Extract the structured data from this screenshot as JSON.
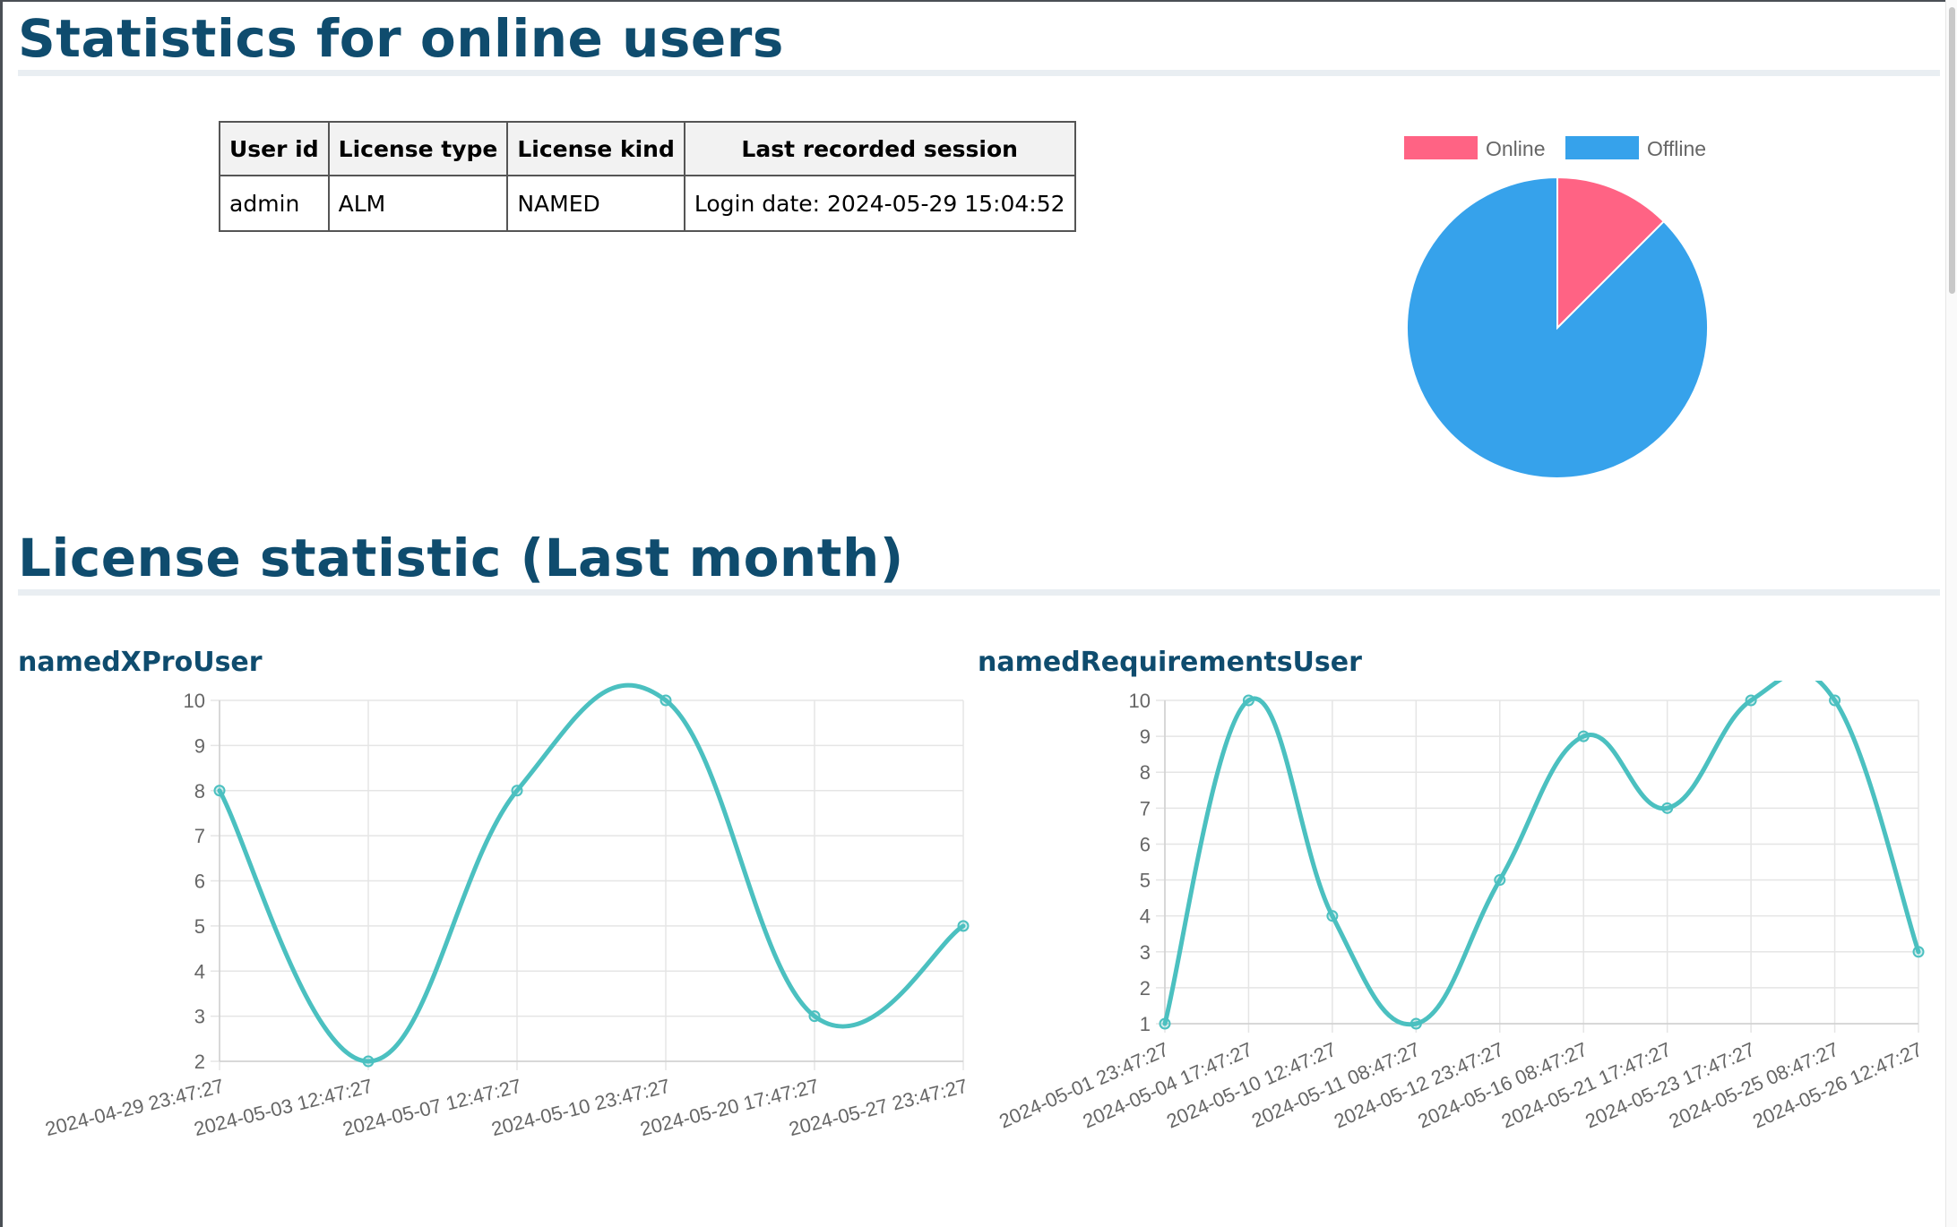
{
  "online_section": {
    "title": "Statistics for online users",
    "table": {
      "headers": [
        "User id",
        "License type",
        "License kind",
        "Last recorded session"
      ],
      "rows": [
        [
          "admin",
          "ALM",
          "NAMED",
          "Login date: 2024-05-29 15:04:52"
        ]
      ]
    }
  },
  "license_section": {
    "title": "License statistic (Last month)"
  },
  "colors": {
    "online": "#ff6384",
    "offline": "#36a2eb",
    "line": "#4bc0c0",
    "heading": "#0f4c6e",
    "grid": "#e5e5e5",
    "tick_text": "#666666"
  },
  "chart_data": [
    {
      "type": "pie",
      "title": "",
      "legend": "top",
      "labels": [
        "Online",
        "Offline"
      ],
      "values": [
        1,
        7
      ]
    },
    {
      "type": "line",
      "title": "namedXProUser",
      "categories": [
        "2024-04-29 23:47:27",
        "2024-05-03 12:47:27",
        "2024-05-07 12:47:27",
        "2024-05-10 23:47:27",
        "2024-05-20 17:47:27",
        "2024-05-27 23:47:27"
      ],
      "values": [
        8,
        2,
        8,
        10,
        3,
        5
      ],
      "ylim": [
        2,
        10
      ],
      "yticks": [
        2,
        3,
        4,
        5,
        6,
        7,
        8,
        9,
        10
      ],
      "grid": true,
      "xlabel": "",
      "ylabel": ""
    },
    {
      "type": "line",
      "title": "namedRequirementsUser",
      "categories": [
        "2024-05-01 23:47:27",
        "2024-05-04 17:47:27",
        "2024-05-10 12:47:27",
        "2024-05-11 08:47:27",
        "2024-05-12 23:47:27",
        "2024-05-16 08:47:27",
        "2024-05-21 17:47:27",
        "2024-05-23 17:47:27",
        "2024-05-25 08:47:27",
        "2024-05-26 12:47:27"
      ],
      "values": [
        1,
        10,
        4,
        1,
        5,
        9,
        7,
        10,
        10,
        3
      ],
      "ylim": [
        1,
        10
      ],
      "yticks": [
        1,
        2,
        3,
        4,
        5,
        6,
        7,
        8,
        9,
        10
      ],
      "grid": true,
      "xlabel": "",
      "ylabel": ""
    }
  ]
}
